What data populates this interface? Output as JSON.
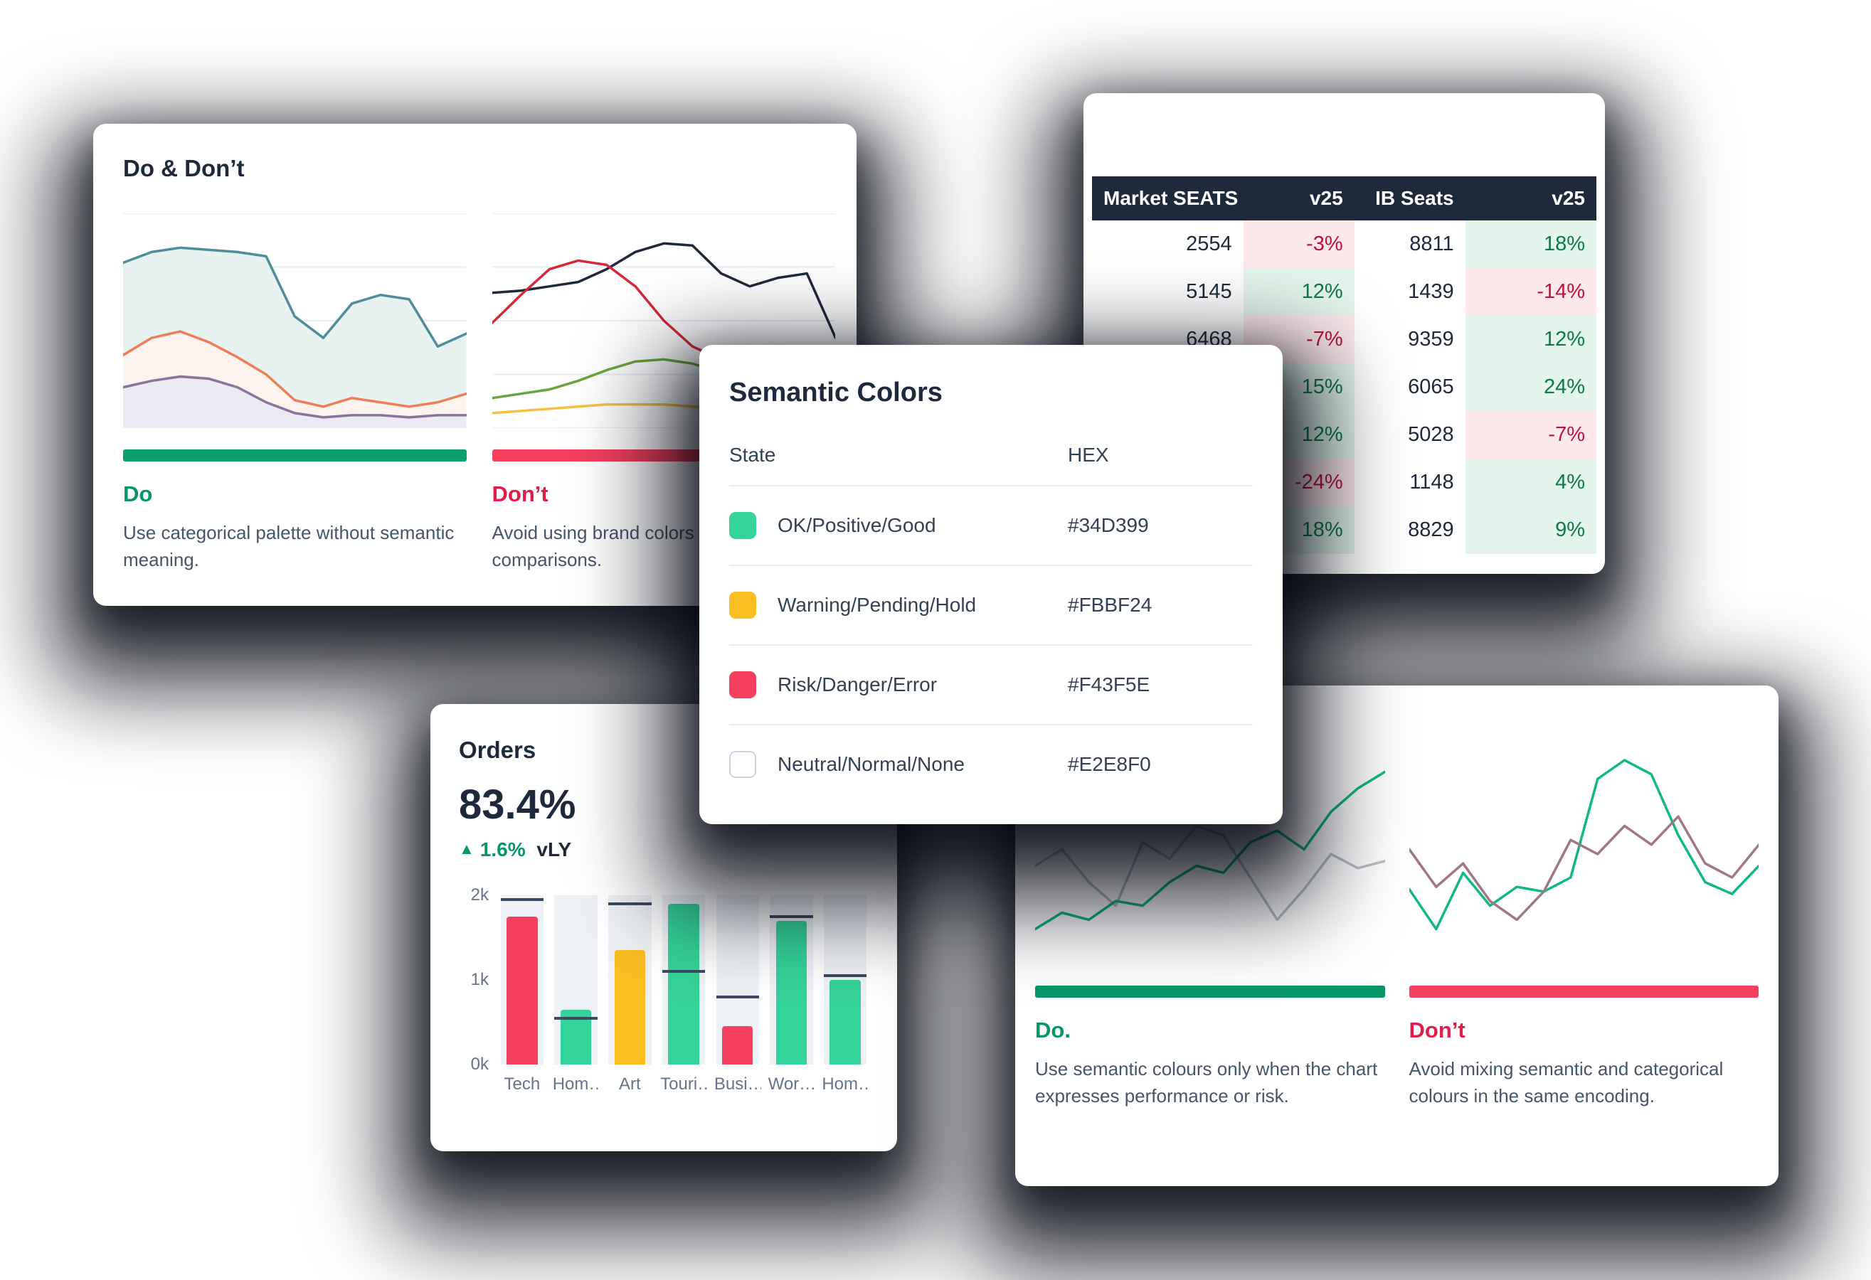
{
  "colors": {
    "positive": "#34D399",
    "warning": "#FBBF24",
    "danger": "#F43F5E",
    "neutral": "#E2E8F0",
    "do_accent": "#059669",
    "dont_accent": "#E11D48"
  },
  "do_dont": {
    "title": "Do & Don’t",
    "do_label": "Do",
    "do_text": "Use categorical palette without semantic meaning.",
    "dont_label": "Don’t",
    "dont_text": "Avoid using brand colors for comparisons."
  },
  "seats_table": {
    "headers": [
      "Market SEATS",
      "v25",
      "IB Seats",
      "v25"
    ],
    "rows": [
      [
        "2554",
        "-3%",
        "8811",
        "18%"
      ],
      [
        "5145",
        "12%",
        "1439",
        "-14%"
      ],
      [
        "6468",
        "-7%",
        "9359",
        "12%"
      ],
      [
        "",
        "15%",
        "6065",
        "24%"
      ],
      [
        "",
        "12%",
        "5028",
        "-7%"
      ],
      [
        "",
        "-24%",
        "1148",
        "4%"
      ],
      [
        "",
        "18%",
        "8829",
        "9%"
      ]
    ]
  },
  "semantic_colors": {
    "title": "Semantic Colors",
    "col_state": "State",
    "col_hex": "HEX",
    "rows": [
      {
        "state": "OK/Positive/Good",
        "hex": "#34D399",
        "swatch": "#34D399",
        "swatch_border": false
      },
      {
        "state": "Warning/Pending/Hold",
        "hex": "#FBBF24",
        "swatch": "#FBBF24",
        "swatch_border": false
      },
      {
        "state": "Risk/Danger/Error",
        "hex": "#F43F5E",
        "swatch": "#F43F5E",
        "swatch_border": false
      },
      {
        "state": "Neutral/Normal/None",
        "hex": "#E2E8F0",
        "swatch": "#FFFFFF",
        "swatch_border": true
      }
    ]
  },
  "orders": {
    "title": "Orders",
    "kpi": "83.4%",
    "delta_arrow": "▲",
    "delta_value": "1.6%",
    "delta_suffix": "vLY"
  },
  "semantic_usage": {
    "do_label": "Do.",
    "do_text": "Use semantic colours only when the chart expresses performance or risk.",
    "dont_label": "Don’t",
    "dont_text": "Avoid mixing semantic and categorical colours in the same encoding."
  },
  "chart_data": [
    {
      "name": "categorical-palette-areas",
      "type": "area",
      "grid": true,
      "series": [
        {
          "name": "teal",
          "color": "#4f8d99",
          "fill": "#e7f2f1",
          "values": [
            77,
            82,
            84,
            83,
            82,
            80,
            52,
            42,
            58,
            62,
            60,
            38,
            44
          ]
        },
        {
          "name": "orange",
          "color": "#ee7e57",
          "fill": "#fdf3ee",
          "values": [
            34,
            42,
            45,
            40,
            33,
            25,
            13,
            10,
            14,
            12,
            10,
            12,
            16
          ]
        },
        {
          "name": "purple",
          "color": "#8b749c",
          "fill": "#eceaf2",
          "values": [
            19,
            22,
            24,
            23,
            19,
            12,
            7,
            5,
            6,
            6,
            5,
            6,
            6
          ]
        }
      ]
    },
    {
      "name": "brand-color-lines",
      "type": "line",
      "grid": true,
      "series": [
        {
          "name": "navy",
          "color": "#1e293b",
          "values": [
            63,
            64,
            66,
            68,
            74,
            82,
            86,
            85,
            72,
            66,
            70,
            72,
            42
          ]
        },
        {
          "name": "red",
          "color": "#d62839",
          "values": [
            49,
            62,
            74,
            78,
            76,
            66,
            50,
            38,
            32,
            30,
            34,
            28,
            26
          ]
        },
        {
          "name": "green",
          "color": "#6ba53f",
          "values": [
            14,
            16,
            18,
            22,
            27,
            31,
            32,
            30,
            26,
            22,
            20,
            18,
            16
          ]
        },
        {
          "name": "yellow",
          "color": "#f4c243",
          "values": [
            7,
            8,
            9,
            10,
            11,
            11,
            11,
            10,
            9,
            9,
            8,
            8,
            8
          ]
        }
      ]
    },
    {
      "name": "orders-by-category",
      "type": "bar",
      "categories": [
        "Tech",
        "Hom…",
        "Art",
        "Touri…",
        "Busi…",
        "Wor…",
        "Hom…"
      ],
      "values": [
        1.75,
        0.65,
        1.35,
        1.9,
        0.45,
        1.7,
        1.0
      ],
      "benchmarks": [
        1.95,
        0.55,
        1.9,
        1.1,
        0.8,
        1.75,
        1.05
      ],
      "colors": [
        "#f43f5e",
        "#34d399",
        "#fbbf24",
        "#34d399",
        "#f43f5e",
        "#34d399",
        "#34d399"
      ],
      "ylim": [
        0,
        2
      ],
      "yticks": [
        "2k",
        "1k",
        "0k"
      ]
    },
    {
      "name": "semantic-do-lines",
      "type": "line",
      "grid": false,
      "series": [
        {
          "name": "gray",
          "color": "#b9c0c9",
          "values": [
            45,
            52,
            38,
            28,
            55,
            48,
            62,
            58,
            40,
            22,
            35,
            50,
            44,
            47
          ]
        },
        {
          "name": "green",
          "color": "#10b981",
          "values": [
            18,
            25,
            22,
            30,
            28,
            38,
            45,
            42,
            55,
            60,
            52,
            68,
            78,
            85
          ]
        }
      ]
    },
    {
      "name": "semantic-dont-lines",
      "type": "line",
      "grid": false,
      "series": [
        {
          "name": "green",
          "color": "#10b981",
          "values": [
            35,
            18,
            42,
            28,
            36,
            34,
            40,
            82,
            90,
            84,
            58,
            38,
            33,
            45
          ]
        },
        {
          "name": "mauve",
          "color": "#a1758b",
          "values": [
            52,
            36,
            46,
            30,
            22,
            34,
            56,
            50,
            62,
            54,
            66,
            46,
            40,
            54
          ]
        }
      ]
    }
  ]
}
